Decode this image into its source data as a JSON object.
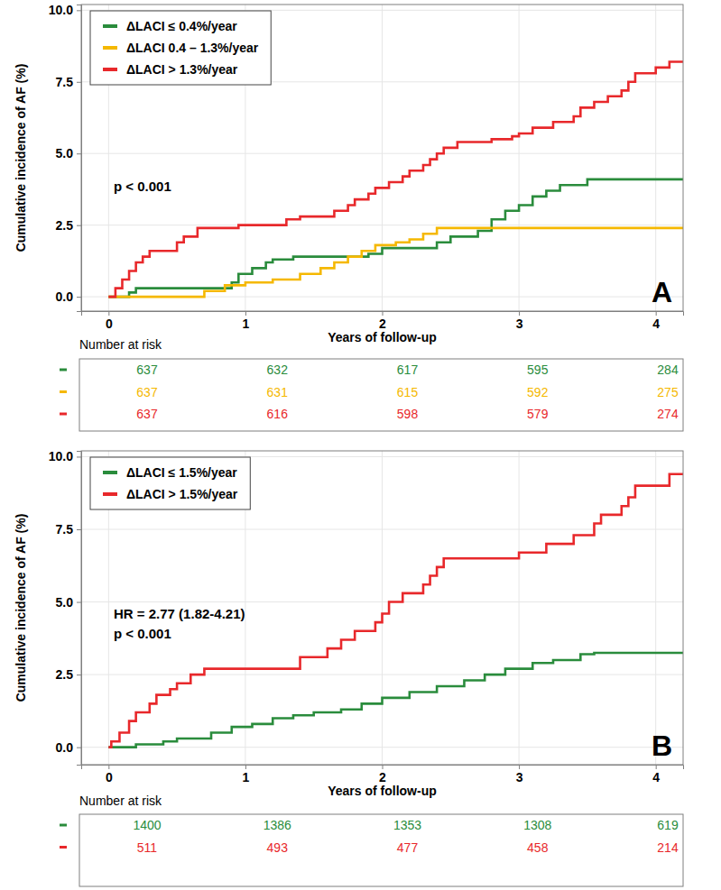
{
  "chart_data": [
    {
      "type": "line",
      "line_style": "step",
      "panel_label": "A",
      "x_label": "Years of follow-up",
      "y_label": "Cumulative incidence of AF (%)",
      "xlim": [
        -0.2,
        4.2
      ],
      "ylim": [
        -0.5,
        10.2
      ],
      "xticks": [
        0,
        1,
        2,
        3,
        4
      ],
      "yticks": [
        {
          "value": 0,
          "label": "0.0"
        },
        {
          "value": 2.5,
          "label": "2.5"
        },
        {
          "value": 5,
          "label": "5.0"
        },
        {
          "value": 7.5,
          "label": "7.5"
        },
        {
          "value": 10,
          "label": "10.0"
        }
      ],
      "grid": true,
      "legend": "upper left",
      "annotations": [
        "p < 0.001"
      ],
      "series": [
        {
          "name": "ΔLACI ≤ 0.4%/year",
          "color": "#2a8c3c",
          "x": [
            0,
            0.15,
            0.2,
            0.9,
            0.95,
            1.05,
            1.15,
            1.2,
            1.35,
            1.9,
            2.0,
            2.4,
            2.5,
            2.7,
            2.8,
            2.9,
            3.0,
            3.1,
            3.2,
            3.3,
            3.5,
            4.2
          ],
          "values": [
            0,
            0.15,
            0.3,
            0.5,
            0.8,
            1.0,
            1.2,
            1.3,
            1.4,
            1.5,
            1.7,
            1.9,
            2.1,
            2.3,
            2.7,
            3.0,
            3.2,
            3.5,
            3.7,
            3.9,
            4.1,
            4.1
          ]
        },
        {
          "name": "ΔLACI 0.4 – 1.3%/year",
          "color": "#f5b800",
          "x": [
            0,
            0.7,
            0.85,
            1.0,
            1.2,
            1.4,
            1.55,
            1.65,
            1.75,
            1.85,
            1.95,
            2.1,
            2.2,
            2.3,
            2.4,
            4.2
          ],
          "values": [
            0,
            0.2,
            0.4,
            0.5,
            0.6,
            0.8,
            1.0,
            1.2,
            1.4,
            1.6,
            1.8,
            1.9,
            2.0,
            2.2,
            2.4,
            2.4
          ]
        },
        {
          "name": "ΔLACI > 1.3%/year",
          "color": "#e8282b",
          "x": [
            0,
            0.05,
            0.1,
            0.15,
            0.2,
            0.25,
            0.3,
            0.5,
            0.55,
            0.65,
            0.95,
            1.3,
            1.4,
            1.65,
            1.75,
            1.8,
            1.9,
            1.95,
            2.05,
            2.15,
            2.2,
            2.3,
            2.35,
            2.4,
            2.45,
            2.55,
            2.8,
            2.95,
            3.0,
            3.1,
            3.25,
            3.4,
            3.45,
            3.55,
            3.65,
            3.75,
            3.8,
            3.85,
            4.0,
            4.1,
            4.2
          ],
          "values": [
            0,
            0.3,
            0.6,
            0.9,
            1.2,
            1.4,
            1.6,
            1.9,
            2.1,
            2.4,
            2.5,
            2.7,
            2.8,
            3.0,
            3.2,
            3.4,
            3.6,
            3.8,
            4.0,
            4.2,
            4.4,
            4.6,
            4.8,
            5.0,
            5.2,
            5.4,
            5.5,
            5.6,
            5.7,
            5.9,
            6.1,
            6.3,
            6.6,
            6.8,
            7.0,
            7.2,
            7.5,
            7.8,
            8.0,
            8.2,
            8.2
          ]
        }
      ],
      "risk_table": {
        "title": "Number at risk",
        "rows": [
          [
            637,
            632,
            617,
            595,
            284
          ],
          [
            637,
            631,
            615,
            592,
            275
          ],
          [
            637,
            616,
            598,
            579,
            274
          ]
        ]
      }
    },
    {
      "type": "line",
      "line_style": "step",
      "panel_label": "B",
      "x_label": "Years of follow-up",
      "y_label": "Cumulative incidence of AF (%)",
      "xlim": [
        -0.2,
        4.2
      ],
      "ylim": [
        -0.6,
        10.2
      ],
      "xticks": [
        0,
        1,
        2,
        3,
        4
      ],
      "yticks": [
        {
          "value": 0,
          "label": "0.0"
        },
        {
          "value": 2.5,
          "label": "2.5"
        },
        {
          "value": 5,
          "label": "5.0"
        },
        {
          "value": 7.5,
          "label": "7.5"
        },
        {
          "value": 10,
          "label": "10.0"
        }
      ],
      "grid": true,
      "legend": "upper left",
      "annotations": [
        "HR = 2.77 (1.82-4.21)",
        "p < 0.001"
      ],
      "series": [
        {
          "name": "ΔLACI ≤ 1.5%/year",
          "color": "#2a8c3c",
          "x": [
            0,
            0.2,
            0.4,
            0.5,
            0.75,
            0.9,
            1.05,
            1.2,
            1.35,
            1.5,
            1.7,
            1.85,
            2.0,
            2.2,
            2.4,
            2.6,
            2.75,
            2.9,
            3.1,
            3.25,
            3.45,
            3.55,
            4.2
          ],
          "values": [
            0,
            0.1,
            0.2,
            0.3,
            0.5,
            0.7,
            0.8,
            1.0,
            1.1,
            1.2,
            1.3,
            1.5,
            1.7,
            1.9,
            2.1,
            2.3,
            2.5,
            2.7,
            2.9,
            3.0,
            3.2,
            3.25,
            3.25
          ]
        },
        {
          "name": "ΔLACI > 1.5%/year",
          "color": "#e8282b",
          "x": [
            0,
            0.02,
            0.08,
            0.15,
            0.2,
            0.3,
            0.35,
            0.45,
            0.5,
            0.6,
            0.7,
            1.4,
            1.6,
            1.7,
            1.8,
            1.95,
            2.0,
            2.05,
            2.15,
            2.3,
            2.35,
            2.4,
            2.45,
            3.0,
            3.2,
            3.4,
            3.55,
            3.6,
            3.75,
            3.8,
            3.85,
            4.1,
            4.2
          ],
          "values": [
            0,
            0.2,
            0.5,
            0.9,
            1.2,
            1.5,
            1.8,
            2.0,
            2.2,
            2.5,
            2.7,
            3.1,
            3.4,
            3.7,
            4.0,
            4.3,
            4.6,
            5.0,
            5.3,
            5.6,
            5.9,
            6.2,
            6.5,
            6.7,
            7.0,
            7.3,
            7.7,
            8.0,
            8.3,
            8.6,
            9.0,
            9.4,
            9.4
          ]
        }
      ],
      "risk_table": {
        "title": "Number at risk",
        "rows": [
          [
            1400,
            1386,
            1353,
            1308,
            619
          ],
          [
            511,
            493,
            477,
            458,
            214
          ]
        ]
      }
    }
  ]
}
